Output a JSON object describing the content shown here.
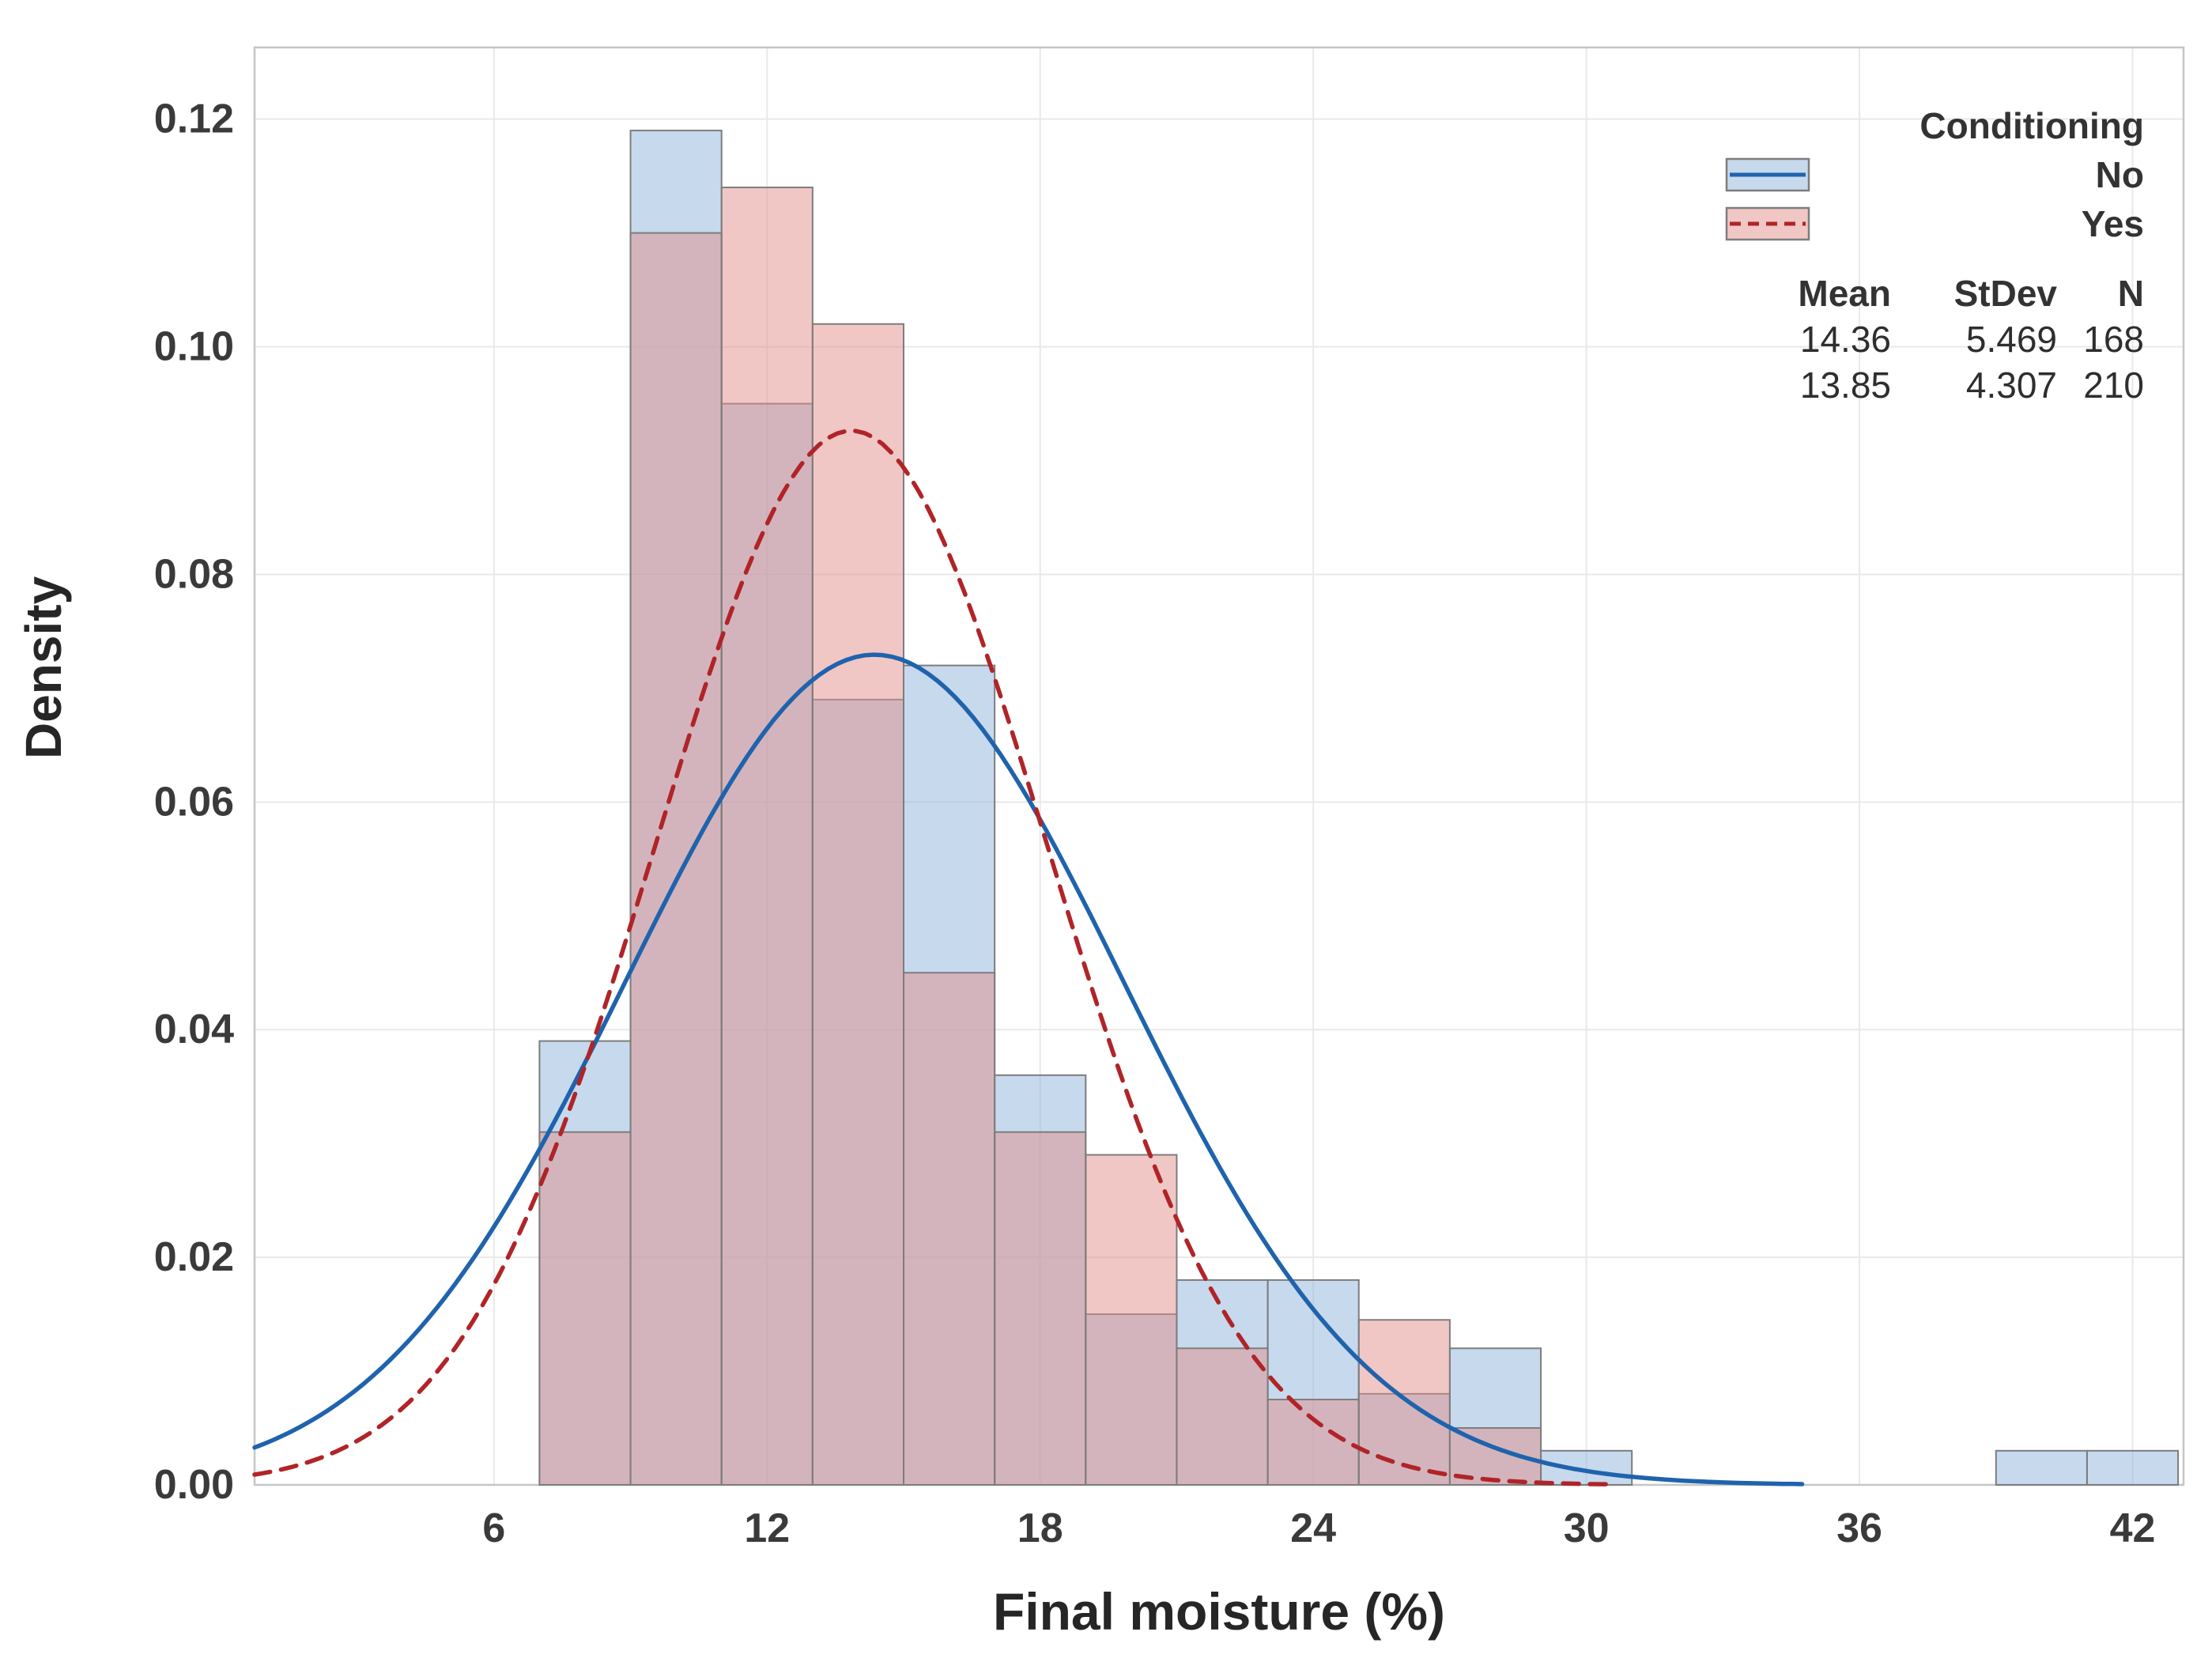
{
  "figure": {
    "x_axis": {
      "label": "Final moisture (%)",
      "tick_labels": [
        "6",
        "12",
        "18",
        "24",
        "30",
        "36",
        "42"
      ],
      "tick_values": [
        6,
        12,
        18,
        24,
        30,
        36,
        42
      ]
    },
    "y_axis": {
      "label": "Density",
      "tick_labels": [
        "0.00",
        "0.02",
        "0.04",
        "0.06",
        "0.08",
        "0.10",
        "0.12"
      ],
      "tick_values": [
        0,
        0.02,
        0.04,
        0.06,
        0.08,
        0.1,
        0.12
      ]
    },
    "legend": {
      "title": "Conditioning",
      "items": [
        {
          "label": "No"
        },
        {
          "label": "Yes"
        }
      ],
      "stats_header": {
        "mean": "Mean",
        "stdev": "StDev",
        "n": "N"
      },
      "stats_rows": [
        {
          "mean": "14.36",
          "stdev": "5.469",
          "n": "168"
        },
        {
          "mean": "13.85",
          "stdev": "4.307",
          "n": "210"
        }
      ]
    },
    "colors": {
      "grid": "#e9e9e9",
      "frame": "#c6c6c6",
      "bar_border": "#7d7d7d",
      "tick_text": "#3a3a3a"
    }
  },
  "chart_data": {
    "type": "bar",
    "subtype": "overlaid-histogram-with-normal-fit",
    "title": "",
    "xlabel": "Final moisture (%)",
    "ylabel": "Density",
    "xlim": [
      0.74,
      43.12
    ],
    "ylim": [
      0,
      0.1263
    ],
    "grid": true,
    "legend_position": "top-right",
    "bin_width": 2,
    "series": [
      {
        "name": "No",
        "mean": 14.36,
        "stdev": 5.469,
        "n": 168,
        "line_color": "#1f63ad",
        "line_style": "solid",
        "fill": "rgba(143,179,219,0.5)",
        "curve_range": [
          0.74,
          34.8
        ],
        "bin_starts": [
          7,
          9,
          11,
          13,
          15,
          17,
          19,
          21,
          23,
          25,
          27,
          29,
          39,
          41
        ],
        "densities": [
          0.039,
          0.119,
          0.095,
          0.069,
          0.072,
          0.036,
          0.015,
          0.018,
          0.018,
          0.008,
          0.012,
          0.003,
          0.003,
          0.003
        ]
      },
      {
        "name": "Yes",
        "mean": 13.85,
        "stdev": 4.307,
        "n": 210,
        "line_color": "#b02428",
        "line_style": "dashed",
        "fill": "rgba(225,143,139,0.5)",
        "curve_range": [
          0.74,
          30.7
        ],
        "bin_starts": [
          7,
          9,
          11,
          13,
          15,
          17,
          19,
          21,
          23,
          25,
          27
        ],
        "densities": [
          0.031,
          0.11,
          0.114,
          0.102,
          0.045,
          0.031,
          0.029,
          0.012,
          0.0075,
          0.0145,
          0.005
        ]
      }
    ]
  }
}
